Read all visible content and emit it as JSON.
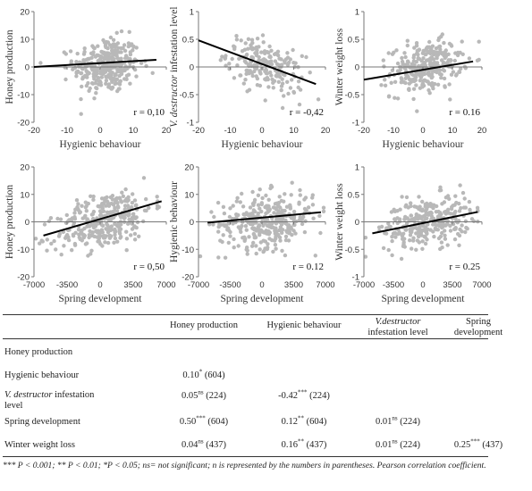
{
  "chart_data": [
    {
      "type": "scatter",
      "xlabel": "Hygienic behaviour",
      "ylabel": "Honey production",
      "xlim": [
        -20,
        20
      ],
      "ylim": [
        -20,
        20
      ],
      "xticks": [
        -20,
        -10,
        0,
        10,
        20
      ],
      "yticks": [
        -20,
        -10,
        0,
        10,
        20
      ],
      "trend": [
        [
          -20,
          0.0
        ],
        [
          17,
          2.6
        ]
      ],
      "annotation": "r = 0,10",
      "cloud": {
        "cx": 2,
        "cy": 0.5,
        "sx": 5,
        "sy": 5,
        "slope": 0.07,
        "n": 320,
        "xmin": -18,
        "xmax": 19,
        "ymin": -17,
        "ymax": 17
      }
    },
    {
      "type": "scatter",
      "xlabel": "Hygienic behaviour",
      "ylabel": "V. destructor infestation level",
      "ylabel_italic": "V. destructor",
      "ylabel_rest": " infestation level",
      "xlim": [
        -20,
        20
      ],
      "ylim": [
        -1,
        1
      ],
      "xticks": [
        -20,
        -10,
        0,
        10,
        20
      ],
      "yticks": [
        -1,
        -0.5,
        0,
        0.5,
        1
      ],
      "trend": [
        [
          -20,
          0.48
        ],
        [
          17,
          -0.31
        ]
      ],
      "annotation": "r = -0,42",
      "cloud": {
        "cx": 1,
        "cy": 0.0,
        "sx": 6,
        "sy": 0.22,
        "slope": -0.02,
        "n": 200,
        "xmin": -18,
        "xmax": 19,
        "ymin": -0.9,
        "ymax": 0.9
      }
    },
    {
      "type": "scatter",
      "xlabel": "Hygienic behaviour",
      "ylabel": "Winter weight loss",
      "xlim": [
        -20,
        20
      ],
      "ylim": [
        -1,
        1
      ],
      "xticks": [
        -20,
        -10,
        0,
        10,
        20
      ],
      "yticks": [
        -1,
        -0.5,
        0,
        0.5,
        1
      ],
      "trend": [
        [
          -20,
          -0.23
        ],
        [
          17,
          0.1
        ]
      ],
      "annotation": "r = 0.16",
      "cloud": {
        "cx": 1,
        "cy": 0.0,
        "sx": 6,
        "sy": 0.22,
        "slope": 0.009,
        "n": 280,
        "xmin": -18,
        "xmax": 19,
        "ymin": -0.8,
        "ymax": 0.75
      }
    },
    {
      "type": "scatter",
      "xlabel": "Spring development",
      "ylabel": "Honey production",
      "xlim": [
        -7000,
        7000
      ],
      "ylim": [
        -20,
        20
      ],
      "xticks": [
        -7000,
        -3500,
        0,
        3500,
        7000
      ],
      "yticks": [
        -20,
        -10,
        0,
        10,
        20
      ],
      "trend": [
        [
          -6000,
          -5
        ],
        [
          6500,
          7.5
        ]
      ],
      "annotation": "r = 0,50",
      "cloud": {
        "cx": 500,
        "cy": 0.5,
        "sx": 2500,
        "sy": 5,
        "slope": 0.001,
        "n": 330,
        "xmin": -6800,
        "xmax": 6500,
        "ymin": -17,
        "ymax": 16
      }
    },
    {
      "type": "scatter",
      "xlabel": "Spring development",
      "ylabel": "Hygienic behaviour",
      "xlim": [
        -7000,
        7000
      ],
      "ylim": [
        -20,
        20
      ],
      "xticks": [
        -7000,
        -3500,
        0,
        3500,
        7000
      ],
      "yticks": [
        -20,
        -10,
        0,
        10,
        20
      ],
      "trend": [
        [
          -6000,
          -0.3
        ],
        [
          6500,
          3.5
        ]
      ],
      "annotation": "r = 0.12",
      "cloud": {
        "cx": 500,
        "cy": 0.5,
        "sx": 2600,
        "sy": 5,
        "slope": 0.0003,
        "n": 350,
        "xmin": -6800,
        "xmax": 6800,
        "ymin": -17,
        "ymax": 17
      }
    },
    {
      "type": "scatter",
      "xlabel": "Spring development",
      "ylabel": "Winter weight loss",
      "xlim": [
        -7000,
        7000
      ],
      "ylim": [
        -1,
        1
      ],
      "xticks": [
        -7000,
        -3500,
        0,
        3500,
        7000
      ],
      "yticks": [
        -1,
        -0.5,
        0,
        0.5,
        1
      ],
      "trend": [
        [
          -6000,
          -0.21
        ],
        [
          6500,
          0.18
        ]
      ],
      "annotation": "r = 0.25",
      "cloud": {
        "cx": 500,
        "cy": 0.0,
        "sx": 2600,
        "sy": 0.22,
        "slope": 3e-05,
        "n": 300,
        "xmin": -6800,
        "xmax": 6500,
        "ymin": -0.8,
        "ymax": 0.7
      }
    }
  ],
  "table": {
    "headers": [
      "Honey production",
      "Hygienic behaviour",
      "V.destructor infestation level",
      "Spring development"
    ],
    "header_lines": [
      [
        "Honey production"
      ],
      [
        "Hygienic behaviour"
      ],
      [
        "V.destructor",
        "infestation level"
      ],
      [
        "Spring",
        "development"
      ]
    ],
    "rows": [
      {
        "label": "Honey production",
        "cells": [
          "",
          "",
          "",
          ""
        ]
      },
      {
        "label": "Hygienic behaviour",
        "cells": [
          {
            "v": "0.10",
            "sig": "*",
            "n": "(604)"
          },
          "",
          "",
          ""
        ]
      },
      {
        "label_italic": "V. destructor",
        "label_rest": " infestation",
        "label_line2": "level",
        "cells": [
          {
            "v": "0.05",
            "sig": "ns",
            "n": "(224)"
          },
          {
            "v": "-0.42",
            "sig": "***",
            "n": "(224)"
          },
          "",
          ""
        ]
      },
      {
        "label": "Spring development",
        "cells": [
          {
            "v": "0.50",
            "sig": "***",
            "n": "(604)"
          },
          {
            "v": "0.12",
            "sig": "**",
            "n": "(604)"
          },
          {
            "v": "0.01",
            "sig": "ns",
            "n": "(224)"
          },
          ""
        ]
      },
      {
        "label": "Winter weight loss",
        "cells": [
          {
            "v": "0.04",
            "sig": "ns",
            "n": "(437)"
          },
          {
            "v": "0.16",
            "sig": "**",
            "n": "(437)"
          },
          {
            "v": "0.01",
            "sig": "ns",
            "n": "(224)"
          },
          {
            "v": "0.25",
            "sig": "***",
            "n": "(437)"
          }
        ]
      }
    ],
    "footnote": "*** P < 0.001; ** P < 0.01; *P < 0.05; ns= not significant; n is represented by the numbers in parentheses. Pearson correlation coefficient."
  },
  "colors": {
    "points": "#b8b8b8",
    "trend": "#000000",
    "axis": "#777777",
    "text": "#333333"
  }
}
